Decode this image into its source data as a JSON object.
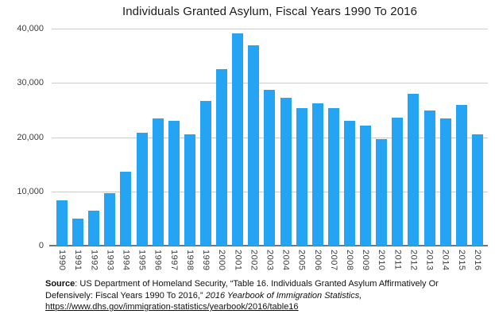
{
  "chart_data": {
    "type": "bar",
    "title": "Individuals Granted Asylum, Fiscal Years 1990 To 2016",
    "categories": [
      "1990",
      "1991",
      "1992",
      "1993",
      "1994",
      "1995",
      "1996",
      "1997",
      "1998",
      "1999",
      "2000",
      "2001",
      "2002",
      "2003",
      "2004",
      "2005",
      "2006",
      "2007",
      "2008",
      "2009",
      "2010",
      "2011",
      "2012",
      "2013",
      "2014",
      "2015",
      "2016"
    ],
    "values": [
      8400,
      5000,
      6400,
      9600,
      13700,
      20800,
      23500,
      23000,
      20500,
      26700,
      32500,
      39100,
      36900,
      28700,
      27300,
      25300,
      26300,
      25300,
      23000,
      22200,
      19700,
      23600,
      28000,
      24900,
      23400,
      26000,
      20500
    ],
    "xlabel": "",
    "ylabel": "",
    "ylim": [
      0,
      40000
    ],
    "yticks": [
      {
        "value": 40000,
        "label": "40,000"
      },
      {
        "value": 30000,
        "label": "30,000"
      },
      {
        "value": 20000,
        "label": "20,000"
      },
      {
        "value": 10000,
        "label": "10,000"
      },
      {
        "value": 0,
        "label": "0"
      }
    ],
    "grid": true,
    "legend": false,
    "bar_color": "#24a4f2",
    "gridline_color": "#cccccc",
    "axis_line_color": "#757575",
    "tick_label_color": "#3d3d3d"
  },
  "source": {
    "bold_label": "Source",
    "body": ": US Department of Homeland Security, “Table 16. Individuals Granted Asylum Affirmatively Or Defensively: Fiscal Years 1990 To 2016,”  ",
    "italic": "2016 Yearbook of Immigration Statistics,",
    "link_url": "https://www.dhs.gov/immigration-statistics/yearbook/2016/table16"
  }
}
